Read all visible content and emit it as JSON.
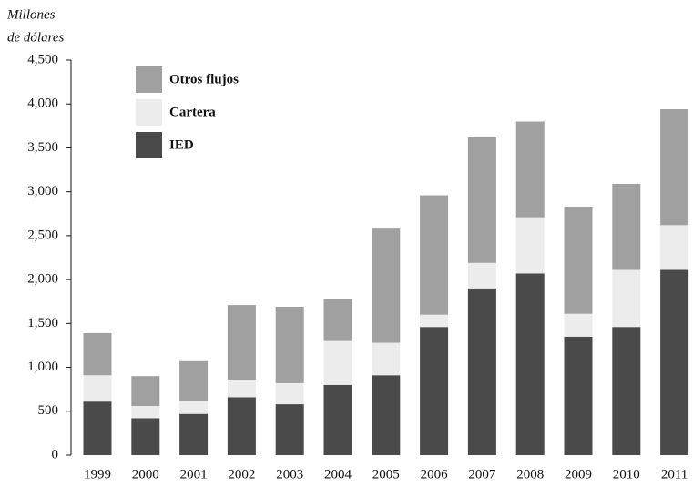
{
  "chart_data": {
    "type": "stacked_bar",
    "ylabel": [
      "Millones",
      "de dólares"
    ],
    "categories": [
      "1999",
      "2000",
      "2001",
      "2002",
      "2003",
      "2004",
      "2005",
      "2006",
      "2007",
      "2008",
      "2009",
      "2010",
      "2011"
    ],
    "series": [
      {
        "name": "IED",
        "color": "#4a4a4a",
        "values": [
          610,
          420,
          470,
          660,
          580,
          800,
          910,
          1460,
          1900,
          2070,
          1350,
          1460,
          2110
        ]
      },
      {
        "name": "Cartera",
        "color": "#ececec",
        "values": [
          300,
          140,
          150,
          200,
          240,
          500,
          370,
          140,
          290,
          640,
          260,
          650,
          510
        ]
      },
      {
        "name": "Otros flujos",
        "color": "#a0a0a0",
        "values": [
          480,
          340,
          450,
          850,
          870,
          480,
          1300,
          1360,
          1430,
          1090,
          1220,
          980,
          1320
        ]
      }
    ],
    "ylim": [
      0,
      4500
    ],
    "yticks": [
      0,
      500,
      {
        "value": 1000,
        "label": "1,000"
      },
      {
        "value": 1500,
        "label": "1,500"
      },
      {
        "value": 2000,
        "label": "2,000"
      },
      {
        "value": 2500,
        "label": "2,500"
      },
      {
        "value": 3000,
        "label": "3,000"
      },
      {
        "value": 3500,
        "label": "3,500"
      },
      {
        "value": 4000,
        "label": "4,000"
      },
      {
        "value": 4500,
        "label": "4,500"
      }
    ],
    "legend": "top-left"
  }
}
